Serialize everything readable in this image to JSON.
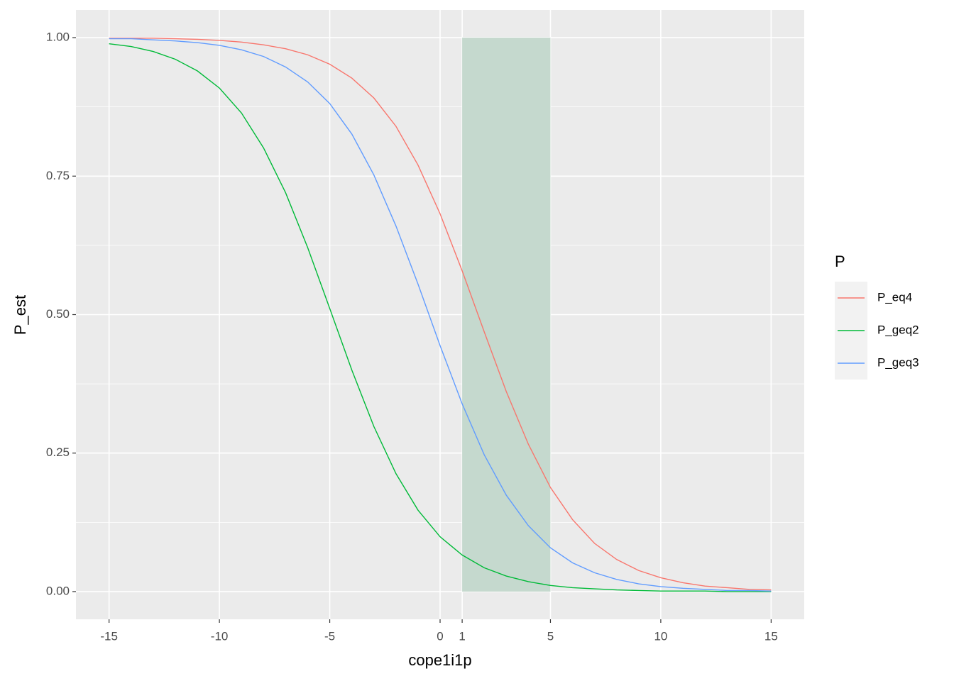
{
  "chart_data": {
    "type": "line",
    "x_label": "cope1i1p",
    "y_label": "P_est",
    "x": [
      -15,
      -14,
      -13,
      -12,
      -11,
      -10,
      -9,
      -8,
      -7,
      -6,
      -5,
      -4,
      -3,
      -2,
      -1,
      0,
      1,
      2,
      3,
      4,
      5,
      6,
      7,
      8,
      9,
      10,
      11,
      12,
      13,
      14,
      15
    ],
    "series": [
      {
        "name": "P_eq4",
        "color": "#F8766D",
        "values": [
          0.999,
          0.999,
          0.999,
          0.998,
          0.997,
          0.995,
          0.992,
          0.987,
          0.98,
          0.969,
          0.952,
          0.927,
          0.891,
          0.84,
          0.77,
          0.682,
          0.579,
          0.469,
          0.361,
          0.266,
          0.188,
          0.13,
          0.087,
          0.058,
          0.038,
          0.025,
          0.016,
          0.01,
          0.007,
          0.004,
          0.003
        ]
      },
      {
        "name": "P_geq2",
        "color": "#00BA38",
        "values": [
          0.989,
          0.984,
          0.975,
          0.961,
          0.94,
          0.909,
          0.864,
          0.801,
          0.72,
          0.621,
          0.511,
          0.4,
          0.298,
          0.213,
          0.147,
          0.099,
          0.066,
          0.043,
          0.028,
          0.018,
          0.011,
          0.007,
          0.005,
          0.003,
          0.002,
          0.001,
          0.001,
          0.001,
          0.0,
          0.0,
          0.0
        ]
      },
      {
        "name": "P_geq3",
        "color": "#619CFF",
        "values": [
          0.998,
          0.998,
          0.996,
          0.994,
          0.991,
          0.986,
          0.978,
          0.966,
          0.947,
          0.92,
          0.881,
          0.826,
          0.752,
          0.66,
          0.555,
          0.444,
          0.339,
          0.247,
          0.174,
          0.119,
          0.079,
          0.052,
          0.034,
          0.022,
          0.014,
          0.009,
          0.006,
          0.004,
          0.002,
          0.002,
          0.001
        ]
      }
    ],
    "shaded_region": {
      "xmin": 1,
      "xmax": 5,
      "ymin": 0,
      "ymax": 1,
      "color": "#c5d9ce"
    },
    "xlim": [
      -16.5,
      16.5
    ],
    "ylim": [
      -0.05,
      1.05
    ],
    "xticks": [
      -15,
      -10,
      -5,
      0,
      1,
      5,
      10,
      15
    ],
    "yticks": [
      {
        "value": 0,
        "label": "0.00"
      },
      {
        "value": 0.25,
        "label": "0.25"
      },
      {
        "value": 0.5,
        "label": "0.50"
      },
      {
        "value": 0.75,
        "label": "0.75"
      },
      {
        "value": 1,
        "label": "1.00"
      }
    ],
    "grid": true,
    "legend": {
      "title": "P",
      "position": "right"
    }
  }
}
